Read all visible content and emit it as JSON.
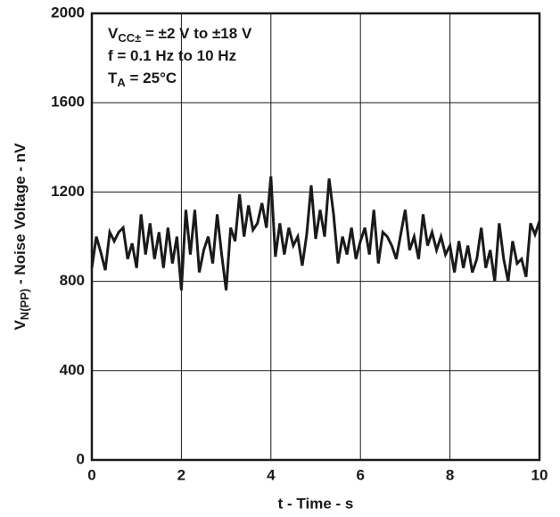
{
  "chart_data": {
    "type": "line",
    "xlabel": "t - Time - s",
    "ylabel": [
      "V",
      "N(PP)",
      " - Noise Voltage - nV"
    ],
    "annotations": [
      [
        "V",
        "CC±",
        " = ±2 V to ±18 V"
      ],
      [
        "f = 0.1 Hz to 10 Hz"
      ],
      [
        "T",
        "A",
        " = 25°C"
      ]
    ],
    "xlim": [
      0,
      10
    ],
    "xticks": [
      0,
      2,
      4,
      6,
      8,
      10
    ],
    "ylim": [
      0,
      2000
    ],
    "yticks": [
      0,
      400,
      800,
      1200,
      1600,
      2000
    ],
    "grid": true,
    "x": [
      0,
      0.1,
      0.2,
      0.3,
      0.4,
      0.5,
      0.6,
      0.7,
      0.8,
      0.9,
      1,
      1.1,
      1.2,
      1.3,
      1.4,
      1.5,
      1.6,
      1.7,
      1.8,
      1.9,
      2,
      2.1,
      2.2,
      2.3,
      2.4,
      2.5,
      2.6,
      2.7,
      2.8,
      2.9,
      3,
      3.1,
      3.2,
      3.3,
      3.4,
      3.5,
      3.6,
      3.7,
      3.8,
      3.9,
      4,
      4.1,
      4.2,
      4.3,
      4.4,
      4.5,
      4.6,
      4.7,
      4.8,
      4.9,
      5,
      5.1,
      5.2,
      5.3,
      5.4,
      5.5,
      5.6,
      5.7,
      5.8,
      5.9,
      6,
      6.1,
      6.2,
      6.3,
      6.4,
      6.5,
      6.6,
      6.7,
      6.8,
      6.9,
      7,
      7.1,
      7.2,
      7.3,
      7.4,
      7.5,
      7.6,
      7.7,
      7.8,
      7.9,
      8,
      8.1,
      8.2,
      8.3,
      8.4,
      8.5,
      8.6,
      8.7,
      8.8,
      8.9,
      9,
      9.1,
      9.2,
      9.3,
      9.4,
      9.5,
      9.6,
      9.7,
      9.8,
      9.9,
      10
    ],
    "series": [
      {
        "color": "#1a1a1a",
        "values": [
          860,
          1000,
          930,
          850,
          1020,
          980,
          1020,
          1040,
          900,
          970,
          860,
          1100,
          920,
          1060,
          900,
          1020,
          860,
          1040,
          880,
          1000,
          760,
          1120,
          920,
          1120,
          840,
          940,
          1000,
          880,
          1100,
          920,
          760,
          1040,
          980,
          1190,
          1000,
          1140,
          1030,
          1060,
          1150,
          1040,
          1270,
          910,
          1060,
          920,
          1040,
          960,
          1000,
          870,
          1010,
          1230,
          990,
          1120,
          1000,
          1260,
          1100,
          880,
          1000,
          920,
          1040,
          900,
          980,
          1040,
          920,
          1120,
          880,
          1020,
          1000,
          960,
          900,
          1010,
          1120,
          940,
          1000,
          900,
          1100,
          960,
          1020,
          940,
          1000,
          920,
          960,
          840,
          980,
          860,
          960,
          840,
          900,
          1040,
          860,
          940,
          800,
          1060,
          900,
          800,
          980,
          880,
          900,
          820,
          1060,
          1010,
          1070
        ]
      }
    ]
  }
}
